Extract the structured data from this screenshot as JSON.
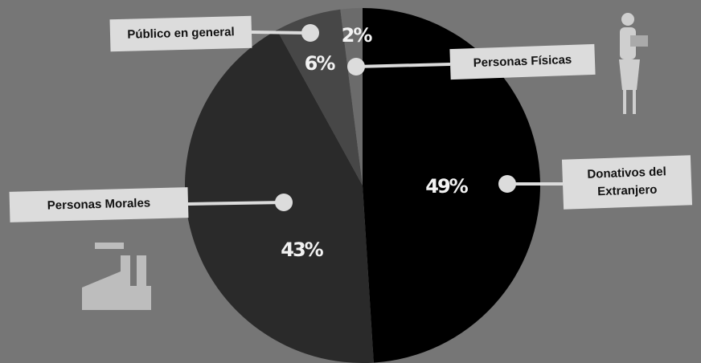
{
  "chart_data": {
    "type": "pie",
    "categories": [
      "Donativos del Extranjero",
      "Personas Morales",
      "Público en general",
      "Personas Físicas"
    ],
    "values": [
      49,
      43,
      6,
      2
    ],
    "value_labels": [
      "49%",
      "43%",
      "6%",
      "2%"
    ],
    "colors": [
      "#000000",
      "#2a2a2a",
      "#474747",
      "#6b6b6b"
    ]
  }
}
